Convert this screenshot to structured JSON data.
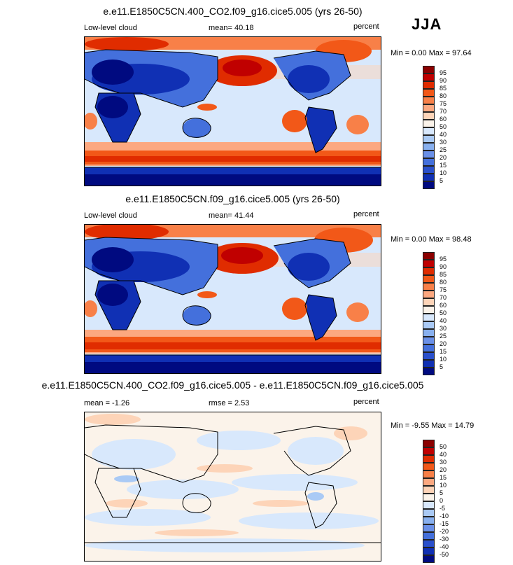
{
  "season": "JJA",
  "panels": [
    {
      "title": "e.e11.E1850C5CN.400_CO2.f09_g16.cice5.005 (yrs 26-50)",
      "left_label": "Low-level cloud",
      "stat_label": "mean=",
      "stat_value": "40.18",
      "units": "percent",
      "minmax": "Min =   0.00 Max =  97.64",
      "min": 0.0,
      "max": 97.64,
      "colorbar_labels": [
        "95",
        "90",
        "85",
        "80",
        "75",
        "70",
        "60",
        "50",
        "40",
        "30",
        "25",
        "20",
        "15",
        "10",
        "5"
      ]
    },
    {
      "title": "e.e11.E1850C5CN.f09_g16.cice5.005 (yrs 26-50)",
      "left_label": "Low-level cloud",
      "stat_label": "mean=",
      "stat_value": "41.44",
      "units": "percent",
      "minmax": "Min =   0.00 Max =  98.48",
      "min": 0.0,
      "max": 98.48,
      "colorbar_labels": [
        "95",
        "90",
        "85",
        "80",
        "75",
        "70",
        "60",
        "50",
        "40",
        "30",
        "25",
        "20",
        "15",
        "10",
        "5"
      ]
    },
    {
      "title": "e.e11.E1850C5CN.400_CO2.f09_g16.cice5.005 - e.e11.E1850C5CN.f09_g16.cice5.005",
      "left_label": "mean =  -1.26",
      "stat_label": "rmse =",
      "stat_value": "2.53",
      "units": "percent",
      "minmax": "Min =  -9.55 Max =  14.79",
      "min": -9.55,
      "max": 14.79,
      "colorbar_labels": [
        "50",
        "40",
        "30",
        "20",
        "15",
        "10",
        "5",
        "0",
        "-5",
        "-10",
        "-15",
        "-20",
        "-30",
        "-40",
        "-50"
      ]
    }
  ],
  "colors": {
    "scale": [
      "#8b0000",
      "#c00000",
      "#e02c00",
      "#f25818",
      "#f88048",
      "#fca880",
      "#fdd4b8",
      "#fbf3ea",
      "#d8e8fc",
      "#aacaf5",
      "#88b0ef",
      "#6a90e8",
      "#4470dc",
      "#2a50cc",
      "#1030b4",
      "#000a80"
    ],
    "coast": "#000000",
    "frame": "#000000"
  }
}
